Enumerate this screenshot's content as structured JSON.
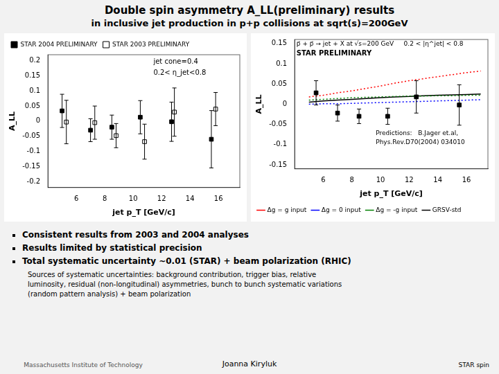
{
  "title": "Double spin asymmetry A_LL(preliminary) results",
  "subtitle": "in inclusive jet production in p+p collisions at sqrt(s)=200GeV",
  "chart_data": [
    {
      "type": "scatter",
      "xlabel": "jet p_T [GeV/c]",
      "ylabel": "A_LL",
      "xlim": [
        4.0,
        17.5
      ],
      "ylim": [
        -0.22,
        0.22
      ],
      "xticks": [
        6,
        8,
        10,
        12,
        14,
        16
      ],
      "yticks": [
        -0.2,
        -0.15,
        -0.1,
        -0.05,
        0,
        0.05,
        0.1,
        0.15,
        0.2
      ],
      "grid": false,
      "legend": "upper left",
      "annotations": [
        "jet cone=0.4",
        "0.2< η_jet<0.8"
      ],
      "series": [
        {
          "name": "STAR 2004 PRELIMINARY",
          "type": "scatter",
          "color": "#000000",
          "marker": "square",
          "x": [
            5.0,
            7.0,
            8.5,
            10.5,
            12.7,
            15.5
          ],
          "values": [
            0.034,
            -0.03,
            -0.02,
            0.013,
            -0.002,
            -0.06
          ],
          "errors": [
            0.055,
            0.038,
            0.04,
            0.055,
            0.065,
            0.095
          ]
        },
        {
          "name": "STAR 2003 PRELIMINARY",
          "type": "scatter",
          "color": "#000000",
          "marker": "open_square",
          "x": [
            5.3,
            7.3,
            8.8,
            10.8,
            12.9,
            15.8
          ],
          "values": [
            -0.003,
            -0.005,
            -0.048,
            -0.068,
            0.03,
            0.04
          ],
          "errors": [
            0.072,
            0.055,
            0.04,
            0.058,
            0.08,
            0.055
          ]
        }
      ]
    },
    {
      "type": "line",
      "xlabel": "jet p_T [GeV/c]",
      "ylabel": "A_LL",
      "xlim": [
        4.0,
        17.5
      ],
      "ylim": [
        -0.16,
        0.16
      ],
      "xticks": [
        6,
        8,
        10,
        12,
        14,
        16
      ],
      "yticks": [
        -0.15,
        -0.1,
        -0.05,
        0,
        0.05,
        0.1,
        0.15
      ],
      "grid": false,
      "legend": "lower left",
      "annotations": [
        "p⃗ + p⃗ → jet + X at √s=200 GeV     0.2 < |η^jet| < 0.8",
        "STAR PRELIMINARY",
        "Predictions:   B.Jager et.al,",
        "Phys.Rev.D70(2004) 034010"
      ],
      "series": [
        {
          "name": "Δg = g input",
          "type": "line",
          "color": "red",
          "line_style": "dotted",
          "x": [
            5,
            6,
            7,
            8,
            9,
            10,
            11,
            12,
            13,
            14,
            15,
            16,
            17
          ],
          "values": [
            0.018,
            0.022,
            0.028,
            0.033,
            0.039,
            0.045,
            0.052,
            0.058,
            0.063,
            0.068,
            0.073,
            0.078,
            0.082
          ]
        },
        {
          "name": "Δg = 0 input",
          "type": "line",
          "color": "blue",
          "line_style": "dotted",
          "x": [
            5,
            6,
            7,
            8,
            9,
            10,
            11,
            12,
            13,
            14,
            15,
            16,
            17
          ],
          "values": [
            0.0,
            0.001,
            0.001,
            0.002,
            0.003,
            0.004,
            0.005,
            0.006,
            0.007,
            0.008,
            0.009,
            0.01,
            0.011
          ]
        },
        {
          "name": "Δg = -g input",
          "type": "line",
          "color": "green",
          "line_style": "dotted",
          "x": [
            5,
            6,
            7,
            8,
            9,
            10,
            11,
            12,
            13,
            14,
            15,
            16,
            17
          ],
          "values": [
            0.01,
            0.012,
            0.014,
            0.016,
            0.017,
            0.018,
            0.019,
            0.02,
            0.02,
            0.021,
            0.021,
            0.022,
            0.022
          ]
        },
        {
          "name": "GRSV-std",
          "type": "line",
          "color": "black",
          "line_style": "solid",
          "x": [
            5,
            6,
            7,
            8,
            9,
            10,
            11,
            12,
            13,
            14,
            15,
            16,
            17
          ],
          "values": [
            0.005,
            0.008,
            0.01,
            0.012,
            0.014,
            0.016,
            0.018,
            0.019,
            0.021,
            0.022,
            0.023,
            0.024,
            0.025
          ]
        },
        {
          "type": "scatter",
          "color": "#000000",
          "marker": "square",
          "x": [
            5.5,
            7.0,
            8.5,
            10.5,
            12.5,
            15.5
          ],
          "values": [
            0.028,
            -0.022,
            -0.03,
            -0.03,
            0.018,
            -0.002
          ],
          "errors": [
            0.03,
            0.02,
            0.018,
            0.02,
            0.04,
            0.05
          ]
        }
      ]
    }
  ],
  "bullets": [
    "Consistent results from 2003 and 2004 analyses",
    "Results limited by statistical precision",
    "Total systematic uncertainty ~0.01 (STAR) + beam polarization (RHIC)"
  ],
  "sub_bullet": "Sources of systematic uncertainties: background contribution, trigger bias, relative\nluminosity,  residual (non-longitudinal) asymmetries, bunch to bunch systematic variations\n(random pattern analysis) + beam polarization",
  "footer_center": "Joanna Kiryluk",
  "footer_left": "Massachusetts Institute of Technology",
  "logo_text": "STAR spin"
}
